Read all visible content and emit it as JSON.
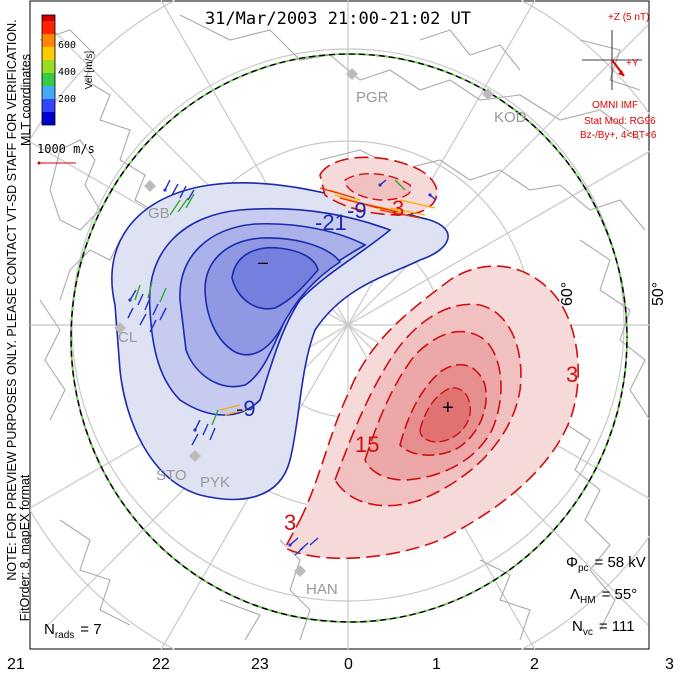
{
  "title": "31/Mar/2003 21:00-21:02 UT",
  "left_notes": {
    "mlt_coordinates": "MLT coordinates",
    "preview_notice": "NOTE: FOR PREVIEW PURPOSES ONLY. PLEASE CONTACT VT-SD STAFF FOR VERIFICATION.",
    "fit_order": "FitOrder: 8, mapEX format"
  },
  "velocity_scale": {
    "label": "Vel [m/s]",
    "ticks": [
      "600",
      "400",
      "200"
    ],
    "colors": [
      "#0000cc",
      "#3344ff",
      "#44aaff",
      "#33cc44",
      "#99dd22",
      "#ffcc00",
      "#ff8800",
      "#ff2200",
      "#cc0000"
    ]
  },
  "reference_vector": {
    "label": "1000 m/s",
    "color": "#e00000"
  },
  "imf": {
    "z_label": "+Z (5 nT)",
    "y_label": "+Y",
    "source": "OMNI IMF",
    "stat_mod": "Stat Mod: RG96",
    "condition": "Bz-/By+, 4<BT<6",
    "color": "#e00000"
  },
  "stations": [
    "PGR",
    "KOD",
    "STO",
    "PYK",
    "HAN",
    "GB",
    "CL"
  ],
  "latitude_labels": [
    "60°",
    "50°"
  ],
  "contours": {
    "negative_labels": [
      "-21",
      "-9",
      "-9"
    ],
    "positive_labels": [
      "3",
      "15",
      "3",
      "3"
    ],
    "min_marker": "–",
    "max_marker": "+",
    "negative_color": "#1a2bb0",
    "positive_color": "#d01010"
  },
  "stats": {
    "phi_pc_symbol": "Φ",
    "phi_pc_sub": "pc",
    "phi_pc_value": "= 58 kV",
    "lambda_symbol": "Λ",
    "lambda_sub": "HM",
    "lambda_value": "= 55°",
    "nvc_symbol": "N",
    "nvc_sub": "vc",
    "nvc_value": "= 111",
    "nrads_symbol": "N",
    "nrads_sub": "rads",
    "nrads_value": "= 7"
  },
  "mlt_axis": [
    "21",
    "22",
    "23",
    "0",
    "1",
    "2",
    "3"
  ]
}
